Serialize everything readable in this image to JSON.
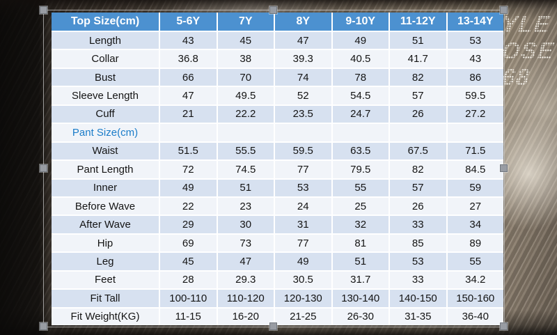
{
  "colors": {
    "header_bg": "#4c91d0",
    "header_text": "#ffffff",
    "row_blue": "#d7e1f0",
    "row_light": "#f1f4f9",
    "section_text": "#1a7cc9",
    "handle_fill": "#989ca3",
    "handle_border": "#70767d"
  },
  "watermark": {
    "lines": [
      "YLE",
      "OSE",
      "68"
    ]
  },
  "table": {
    "header": [
      "Top Size(cm)",
      "5-6Y",
      "7Y",
      "8Y",
      "9-10Y",
      "11-12Y",
      "13-14Y"
    ],
    "rows": [
      {
        "label": "Length",
        "values": [
          "43",
          "45",
          "47",
          "49",
          "51",
          "53"
        ]
      },
      {
        "label": "Collar",
        "values": [
          "36.8",
          "38",
          "39.3",
          "40.5",
          "41.7",
          "43"
        ]
      },
      {
        "label": "Bust",
        "values": [
          "66",
          "70",
          "74",
          "78",
          "82",
          "86"
        ]
      },
      {
        "label": "Sleeve Length",
        "values": [
          "47",
          "49.5",
          "52",
          "54.5",
          "57",
          "59.5"
        ]
      },
      {
        "label": "Cuff",
        "values": [
          "21",
          "22.2",
          "23.5",
          "24.7",
          "26",
          "27.2"
        ]
      },
      {
        "label": "Pant Size(cm)",
        "section": true,
        "values": [
          "",
          "",
          "",
          "",
          "",
          ""
        ]
      },
      {
        "label": "Waist",
        "values": [
          "51.5",
          "55.5",
          "59.5",
          "63.5",
          "67.5",
          "71.5"
        ]
      },
      {
        "label": "Pant Length",
        "values": [
          "72",
          "74.5",
          "77",
          "79.5",
          "82",
          "84.5"
        ]
      },
      {
        "label": "Inner",
        "values": [
          "49",
          "51",
          "53",
          "55",
          "57",
          "59"
        ]
      },
      {
        "label": "Before Wave",
        "values": [
          "22",
          "23",
          "24",
          "25",
          "26",
          "27"
        ]
      },
      {
        "label": "After Wave",
        "values": [
          "29",
          "30",
          "31",
          "32",
          "33",
          "34"
        ]
      },
      {
        "label": "Hip",
        "values": [
          "69",
          "73",
          "77",
          "81",
          "85",
          "89"
        ]
      },
      {
        "label": "Leg",
        "values": [
          "45",
          "47",
          "49",
          "51",
          "53",
          "55"
        ]
      },
      {
        "label": "Feet",
        "values": [
          "28",
          "29.3",
          "30.5",
          "31.7",
          "33",
          "34.2"
        ]
      },
      {
        "label": "Fit Tall",
        "values": [
          "100-110",
          "110-120",
          "120-130",
          "130-140",
          "140-150",
          "150-160"
        ]
      },
      {
        "label": "Fit Weight(KG)",
        "values": [
          "11-15",
          "16-20",
          "21-25",
          "26-30",
          "31-35",
          "36-40"
        ]
      }
    ]
  },
  "chart_data": {
    "type": "table",
    "title": "Kids clothing size chart (cm)",
    "columns": [
      "Top Size(cm)",
      "5-6Y",
      "7Y",
      "8Y",
      "9-10Y",
      "11-12Y",
      "13-14Y"
    ],
    "sections": [
      {
        "name": "Top Size(cm)",
        "rows": {
          "Length": [
            43,
            45,
            47,
            49,
            51,
            53
          ],
          "Collar": [
            36.8,
            38,
            39.3,
            40.5,
            41.7,
            43
          ],
          "Bust": [
            66,
            70,
            74,
            78,
            82,
            86
          ],
          "Sleeve Length": [
            47,
            49.5,
            52,
            54.5,
            57,
            59.5
          ],
          "Cuff": [
            21,
            22.2,
            23.5,
            24.7,
            26,
            27.2
          ]
        }
      },
      {
        "name": "Pant Size(cm)",
        "rows": {
          "Waist": [
            51.5,
            55.5,
            59.5,
            63.5,
            67.5,
            71.5
          ],
          "Pant Length": [
            72,
            74.5,
            77,
            79.5,
            82,
            84.5
          ],
          "Inner": [
            49,
            51,
            53,
            55,
            57,
            59
          ],
          "Before Wave": [
            22,
            23,
            24,
            25,
            26,
            27
          ],
          "After Wave": [
            29,
            30,
            31,
            32,
            33,
            34
          ],
          "Hip": [
            69,
            73,
            77,
            81,
            85,
            89
          ],
          "Leg": [
            45,
            47,
            49,
            51,
            53,
            55
          ],
          "Feet": [
            28,
            29.3,
            30.5,
            31.7,
            33,
            34.2
          ],
          "Fit Tall": [
            "100-110",
            "110-120",
            "120-130",
            "130-140",
            "140-150",
            "150-160"
          ],
          "Fit Weight(KG)": [
            "11-15",
            "16-20",
            "21-25",
            "26-30",
            "31-35",
            "36-40"
          ]
        }
      }
    ]
  }
}
